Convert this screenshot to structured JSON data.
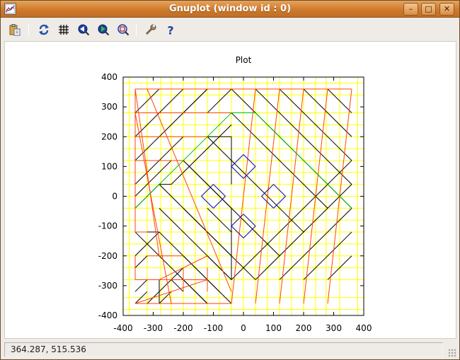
{
  "window": {
    "title": "Gnuplot (window id : 0)",
    "buttons": {
      "minimize": "–",
      "maximize": "□",
      "close": "✕"
    }
  },
  "toolbar": {
    "items": [
      {
        "name": "copy-clipboard",
        "icon": "clipboard-copy-icon"
      },
      {
        "name": "replot",
        "icon": "refresh-icon"
      },
      {
        "name": "toggle-grid",
        "icon": "grid-icon"
      },
      {
        "name": "zoom-previous",
        "icon": "zoom-previous-icon"
      },
      {
        "name": "zoom-next",
        "icon": "zoom-next-icon"
      },
      {
        "name": "unzoom",
        "icon": "unzoom-icon"
      },
      {
        "name": "options",
        "icon": "wrench-icon"
      },
      {
        "name": "help",
        "icon": "help-icon"
      }
    ]
  },
  "status": {
    "coords": "364.287,  515.536"
  },
  "colors": {
    "black_lines": "#000000",
    "red_lines": "#ff4500",
    "green_line": "#00c000",
    "blue_diamonds": "#0000d0",
    "grid": "#ffff00",
    "titlebar": "#d4833a"
  },
  "chart_data": {
    "type": "line",
    "title": "Plot",
    "xlim": [
      -400,
      400
    ],
    "ylim": [
      -400,
      400
    ],
    "xticks": [
      -400,
      -300,
      -200,
      -100,
      0,
      100,
      200,
      300,
      400
    ],
    "yticks": [
      -400,
      -300,
      -200,
      -100,
      0,
      100,
      200,
      300,
      400
    ],
    "xtick_labels": [
      "-400",
      "-300",
      "-200",
      "-100",
      "0",
      "100",
      "200",
      "300",
      "400"
    ],
    "ytick_labels": [
      "-400",
      "-300",
      "-200",
      "-100",
      "0",
      "100",
      "200",
      "300",
      "400"
    ],
    "grid": true,
    "grid_x": [
      -380,
      -320,
      -275,
      -240,
      -200,
      -160,
      -120,
      -80,
      -40,
      0,
      40,
      80,
      120,
      160,
      200,
      240,
      275,
      320,
      380
    ],
    "grid_y": [
      -380,
      -340,
      -280,
      -240,
      -200,
      -160,
      -120,
      -80,
      -40,
      0,
      40,
      80,
      120,
      160,
      200,
      240,
      280,
      340,
      380
    ],
    "series": [
      {
        "color": "#000000",
        "segments": [
          [
            [
              -360,
              -360
            ],
            [
              -320,
              -320
            ]
          ],
          [
            [
              -360,
              -320
            ],
            [
              -320,
              -280
            ]
          ],
          [
            [
              -360,
              -240
            ],
            [
              -320,
              -200
            ]
          ],
          [
            [
              -360,
              -120
            ],
            [
              -280,
              -200
            ]
          ],
          [
            [
              -360,
              -40
            ],
            [
              -280,
              40
            ]
          ],
          [
            [
              -360,
              0
            ],
            [
              -240,
              120
            ]
          ],
          [
            [
              -360,
              40
            ],
            [
              -200,
              200
            ]
          ],
          [
            [
              -360,
              120
            ],
            [
              -120,
              360
            ]
          ],
          [
            [
              -360,
              200
            ],
            [
              -200,
              360
            ]
          ],
          [
            [
              -360,
              280
            ],
            [
              -280,
              360
            ]
          ],
          [
            [
              -280,
              -360
            ],
            [
              -240,
              -320
            ]
          ],
          [
            [
              -280,
              -200
            ],
            [
              -120,
              -360
            ]
          ],
          [
            [
              -240,
              -280
            ],
            [
              -200,
              -320
            ]
          ],
          [
            [
              -200,
              -280
            ],
            [
              -120,
              -360
            ]
          ],
          [
            [
              -120,
              -280
            ],
            [
              -80,
              -320
            ]
          ],
          [
            [
              -40,
              -280
            ],
            [
              -120,
              -200
            ]
          ],
          [
            [
              -320,
              -360
            ],
            [
              -200,
              -240
            ]
          ],
          [
            [
              -200,
              -200
            ],
            [
              -120,
              -280
            ]
          ],
          [
            [
              -280,
              -120
            ],
            [
              -40,
              -360
            ]
          ],
          [
            [
              -280,
              40
            ],
            [
              40,
              -280
            ]
          ],
          [
            [
              -200,
              120
            ],
            [
              120,
              -200
            ]
          ],
          [
            [
              -120,
              200
            ],
            [
              200,
              -120
            ]
          ],
          [
            [
              -40,
              280
            ],
            [
              280,
              -40
            ]
          ],
          [
            [
              -40,
              360
            ],
            [
              360,
              -40
            ]
          ],
          [
            [
              40,
              360
            ],
            [
              360,
              40
            ]
          ],
          [
            [
              120,
              360
            ],
            [
              360,
              120
            ]
          ],
          [
            [
              200,
              360
            ],
            [
              360,
              200
            ]
          ],
          [
            [
              280,
              360
            ],
            [
              360,
              280
            ]
          ],
          [
            [
              -120,
              280
            ],
            [
              -40,
              360
            ]
          ],
          [
            [
              -200,
              280
            ],
            [
              -120,
              360
            ]
          ],
          [
            [
              -280,
              -120
            ],
            [
              -360,
              -120
            ]
          ],
          [
            [
              -360,
              -200
            ],
            [
              -280,
              -120
            ]
          ],
          [
            [
              -360,
              -280
            ],
            [
              -240,
              -280
            ]
          ],
          [
            [
              -280,
              -360
            ],
            [
              -280,
              -280
            ]
          ],
          [
            [
              -200,
              -320
            ],
            [
              -200,
              -240
            ]
          ],
          [
            [
              -120,
              -280
            ],
            [
              -120,
              -240
            ]
          ],
          [
            [
              -280,
              40
            ],
            [
              -240,
              40
            ]
          ],
          [
            [
              -240,
              40
            ],
            [
              -40,
              240
            ]
          ],
          [
            [
              -120,
              200
            ],
            [
              -40,
              200
            ]
          ],
          [
            [
              -40,
              200
            ],
            [
              -40,
              40
            ]
          ],
          [
            [
              -200,
              120
            ],
            [
              -40,
              -40
            ]
          ],
          [
            [
              -40,
              -40
            ],
            [
              -40,
              -280
            ]
          ],
          [
            [
              -120,
              -40
            ],
            [
              -40,
              -120
            ]
          ],
          [
            [
              -200,
              -40
            ],
            [
              -40,
              -200
            ]
          ],
          [
            [
              -280,
              -40
            ],
            [
              -40,
              -280
            ]
          ],
          [
            [
              120,
              -280
            ],
            [
              360,
              -40
            ]
          ],
          [
            [
              200,
              -280
            ],
            [
              360,
              -120
            ]
          ],
          [
            [
              280,
              -280
            ],
            [
              360,
              -200
            ]
          ],
          [
            [
              40,
              -280
            ],
            [
              360,
              40
            ]
          ],
          [
            [
              -40,
              -280
            ],
            [
              360,
              120
            ]
          ]
        ]
      },
      {
        "color": "#ff4500",
        "segments": [
          [
            [
              -360,
              360
            ],
            [
              40,
              360
            ]
          ],
          [
            [
              -360,
              360
            ],
            [
              -360,
              -120
            ]
          ],
          [
            [
              -360,
              -120
            ],
            [
              -320,
              -120
            ]
          ],
          [
            [
              -360,
              280
            ],
            [
              -40,
              280
            ]
          ],
          [
            [
              -360,
              200
            ],
            [
              -120,
              200
            ]
          ],
          [
            [
              -360,
              120
            ],
            [
              -200,
              120
            ]
          ],
          [
            [
              -360,
              -200
            ],
            [
              -360,
              -280
            ]
          ],
          [
            [
              -360,
              -280
            ],
            [
              -120,
              -280
            ]
          ],
          [
            [
              -360,
              -360
            ],
            [
              -40,
              -360
            ]
          ],
          [
            [
              -360,
              360
            ],
            [
              -280,
              -200
            ]
          ],
          [
            [
              -360,
              280
            ],
            [
              -240,
              -360
            ]
          ],
          [
            [
              -320,
              360
            ],
            [
              -40,
              -320
            ]
          ],
          [
            [
              -280,
              -280
            ],
            [
              -120,
              -200
            ]
          ],
          [
            [
              -320,
              -200
            ],
            [
              -200,
              -200
            ]
          ],
          [
            [
              -360,
              -360
            ],
            [
              -120,
              -280
            ]
          ],
          [
            [
              -40,
              -360
            ],
            [
              40,
              360
            ]
          ],
          [
            [
              40,
              -360
            ],
            [
              120,
              360
            ]
          ],
          [
            [
              120,
              -360
            ],
            [
              200,
              360
            ]
          ],
          [
            [
              200,
              -360
            ],
            [
              280,
              360
            ]
          ],
          [
            [
              280,
              -360
            ],
            [
              360,
              360
            ]
          ],
          [
            [
              360,
              360
            ],
            [
              40,
              360
            ]
          ],
          [
            [
              -120,
              -320
            ],
            [
              -120,
              -240
            ]
          ],
          [
            [
              -200,
              -240
            ],
            [
              -200,
              -320
            ]
          ]
        ]
      },
      {
        "color": "#00c000",
        "segments": [
          [
            [
              -360,
              -40
            ],
            [
              -40,
              280
            ]
          ],
          [
            [
              -40,
              280
            ],
            [
              40,
              280
            ]
          ],
          [
            [
              40,
              280
            ],
            [
              360,
              -40
            ]
          ]
        ]
      },
      {
        "color": "#0000d0",
        "segments": [
          [
            [
              -40,
              100
            ],
            [
              0,
              140
            ]
          ],
          [
            [
              0,
              140
            ],
            [
              40,
              100
            ]
          ],
          [
            [
              40,
              100
            ],
            [
              0,
              60
            ]
          ],
          [
            [
              0,
              60
            ],
            [
              -40,
              100
            ]
          ],
          [
            [
              -140,
              0
            ],
            [
              -100,
              40
            ]
          ],
          [
            [
              -100,
              40
            ],
            [
              -60,
              0
            ]
          ],
          [
            [
              -60,
              0
            ],
            [
              -100,
              -40
            ]
          ],
          [
            [
              -100,
              -40
            ],
            [
              -140,
              0
            ]
          ],
          [
            [
              60,
              0
            ],
            [
              100,
              40
            ]
          ],
          [
            [
              100,
              40
            ],
            [
              140,
              0
            ]
          ],
          [
            [
              140,
              0
            ],
            [
              100,
              -40
            ]
          ],
          [
            [
              100,
              -40
            ],
            [
              60,
              0
            ]
          ],
          [
            [
              -40,
              -100
            ],
            [
              0,
              -60
            ]
          ],
          [
            [
              0,
              -60
            ],
            [
              40,
              -100
            ]
          ],
          [
            [
              40,
              -100
            ],
            [
              0,
              -140
            ]
          ],
          [
            [
              0,
              -140
            ],
            [
              -40,
              -100
            ]
          ]
        ]
      }
    ]
  }
}
